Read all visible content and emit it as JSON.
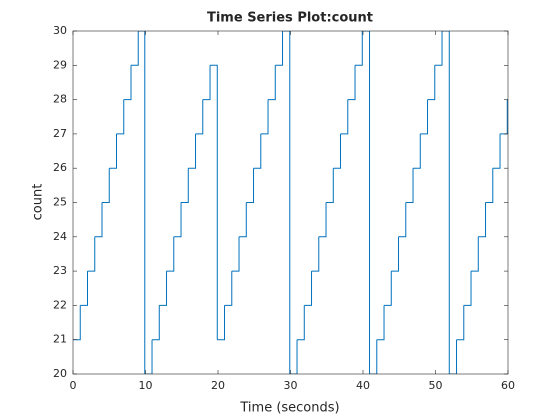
{
  "chart_data": {
    "type": "stairs",
    "title": "Time Series Plot:count",
    "xlabel": "Time (seconds)",
    "ylabel": "count",
    "x": [
      0,
      1,
      2,
      3,
      4,
      5,
      6,
      7,
      8,
      9,
      9.9,
      10.9,
      11.9,
      12.9,
      13.9,
      14.9,
      15.9,
      16.9,
      17.9,
      18.9,
      19.9,
      20.9,
      21.9,
      22.9,
      23.9,
      24.9,
      25.9,
      26.9,
      27.9,
      28.9,
      29.9,
      30.9,
      31.9,
      32.9,
      33.9,
      34.9,
      35.9,
      36.9,
      37.9,
      38.9,
      39.9,
      40.9,
      41.9,
      42.9,
      43.9,
      44.9,
      45.9,
      46.9,
      47.9,
      48.9,
      49.9,
      50.9,
      51.9,
      52.9,
      53.9,
      54.9,
      55.9,
      56.9,
      57.9,
      58.9,
      59.9
    ],
    "values": [
      21,
      22,
      23,
      24,
      25,
      26,
      27,
      28,
      29,
      30,
      20,
      21,
      22,
      23,
      24,
      25,
      26,
      27,
      28,
      29,
      21,
      22,
      23,
      24,
      25,
      26,
      27,
      28,
      29,
      30,
      20,
      21,
      22,
      23,
      24,
      25,
      26,
      27,
      28,
      29,
      30,
      20,
      21,
      22,
      23,
      24,
      25,
      26,
      27,
      28,
      29,
      30,
      20,
      21,
      22,
      23,
      24,
      25,
      26,
      27,
      28
    ],
    "color": "#0072bd",
    "xlim": [
      0,
      60
    ],
    "xticks": [
      0,
      10,
      20,
      30,
      40,
      50,
      60
    ],
    "ylim": [
      20,
      30
    ],
    "yticks": [
      20,
      21,
      22,
      23,
      24,
      25,
      26,
      27,
      28,
      29,
      30
    ]
  }
}
